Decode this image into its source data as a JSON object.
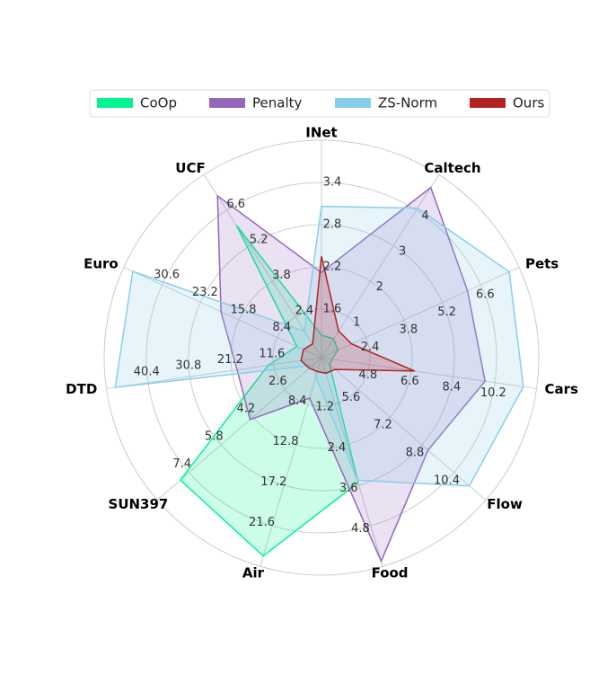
{
  "chart_data": {
    "type": "radar",
    "legend": "top",
    "categories": [
      "INet",
      "Caltech",
      "Pets",
      "Cars",
      "Flow",
      "Food",
      "Air",
      "SUN397",
      "DTD",
      "Euro",
      "UCF"
    ],
    "ranges": [
      [
        0.91,
        4.0
      ],
      [
        -0.15,
        5.0
      ],
      [
        0.79,
        8.0
      ],
      [
        2.73,
        12.0
      ],
      [
        3.76,
        12.0
      ],
      [
        -0.18,
        6.0
      ],
      [
        3.34,
        26.0
      ],
      [
        0.76,
        9.0
      ],
      [
        0.56,
        50.0
      ],
      [
        -0.11,
        38.0
      ],
      [
        0.79,
        8.0
      ]
    ],
    "ticks": [
      [
        1.6,
        2.2,
        2.8,
        3.4
      ],
      [
        1.0,
        2.0,
        3.0,
        4.0
      ],
      [
        2.4,
        3.8,
        5.2,
        6.6
      ],
      [
        4.8,
        6.6,
        8.4,
        10.2
      ],
      [
        5.6,
        7.2,
        8.8,
        10.4
      ],
      [
        1.2,
        2.4,
        3.6,
        4.8
      ],
      [
        8.4,
        12.8,
        17.2,
        21.6
      ],
      [
        2.6,
        4.2,
        5.8,
        7.4
      ],
      [
        11.6,
        21.2,
        30.8,
        40.4
      ],
      [
        8.4,
        15.8,
        23.2,
        30.6
      ],
      [
        2.4,
        3.8,
        5.2,
        6.6
      ]
    ],
    "series": [
      {
        "name": "CoOp",
        "color": "#00f590",
        "values": [
          1.23,
          0.38,
          1.39,
          3.19,
          4.17,
          3.52,
          24.88,
          7.84,
          12.83,
          4.62,
          6.0
        ]
      },
      {
        "name": "Penalty",
        "color": "#9467bd",
        "values": [
          2.12,
          4.64,
          6.12,
          9.78,
          9.11,
          5.85,
          7.74,
          4.34,
          19.97,
          19.26,
          7.17
        ]
      },
      {
        "name": "ZS-Norm",
        "color": "#87ceeb",
        "values": [
          3.06,
          4.06,
          7.64,
          11.43,
          11.18,
          3.45,
          5.4,
          1.2,
          47.96,
          36.27,
          1.83
        ]
      },
      {
        "name": "Ours",
        "color": "#b22222",
        "values": [
          2.35,
          0.6,
          1.89,
          6.75,
          4.44,
          0.28,
          4.84,
          1.37,
          5.27,
          3.36,
          1.33
        ]
      }
    ]
  }
}
